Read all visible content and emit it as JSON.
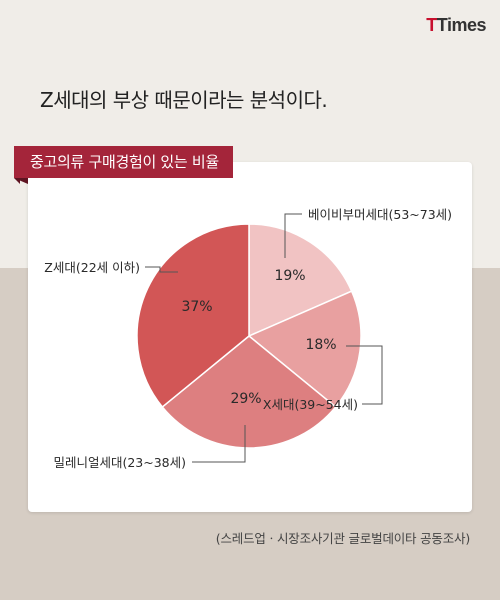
{
  "logo": {
    "first": "T",
    "rest": "Times"
  },
  "headline": "Z세대의 부상 때문이라는 분석이다.",
  "banner": "중고의류 구매경험이 있는 비율",
  "source": "(스레드업ㆍ시장조사기관 글로벌데이타 공동조사)",
  "colors": {
    "banner": "#a4253a",
    "slice_baby_boomer": "#f1c3c3",
    "slice_x": "#e8a0a0",
    "slice_millennial": "#dd7f80",
    "slice_z": "#d25656",
    "leader": "#555555"
  },
  "chart_data": {
    "type": "pie",
    "title": "중고의류 구매경험이 있는 비율",
    "slices": [
      {
        "label": "베이비부머세대(53~73세)",
        "value": 19,
        "value_label": "19%",
        "color_key": "slice_baby_boomer"
      },
      {
        "label": "X세대(39~54세)",
        "value": 18,
        "value_label": "18%",
        "color_key": "slice_x"
      },
      {
        "label": "밀레니얼세대(23~38세)",
        "value": 29,
        "value_label": "29%",
        "color_key": "slice_millennial"
      },
      {
        "label": "Z세대(22세 이하)",
        "value": 37,
        "value_label": "37%",
        "color_key": "slice_z"
      }
    ]
  }
}
